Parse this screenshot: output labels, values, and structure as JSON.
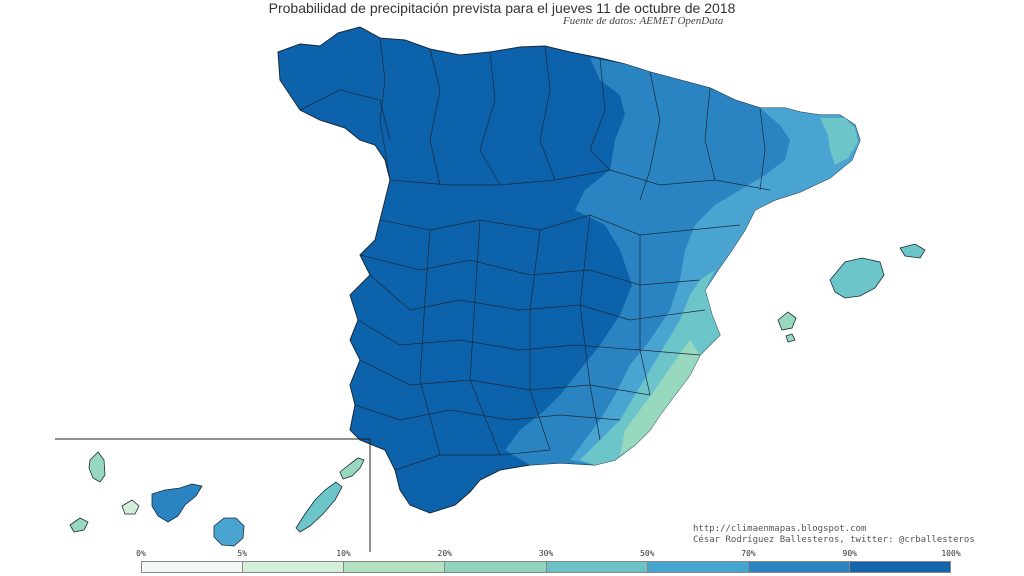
{
  "title": "Probabilidad de precipitación prevista para el jueves 11 de octubre de 2018",
  "subtitle": "Fuente de datos: AEMET OpenData",
  "credits": {
    "url": "http://climaenmapas.blogspot.com",
    "author": "César Rodríguez Ballesteros, twitter: @crballesteros"
  },
  "legend": {
    "ticks": [
      "0%",
      "5%",
      "10%",
      "20%",
      "30%",
      "50%",
      "70%",
      "90%",
      "100%"
    ],
    "colors": [
      "#f5f9f5",
      "#d4efd9",
      "#b2e2c2",
      "#8fd2bd",
      "#6bc2c4",
      "#45a5cf",
      "#2b82c0",
      "#1563aa"
    ]
  },
  "colors": {
    "very_high": "#0c62ab",
    "high": "#2b84c2",
    "medium": "#4aa4d2",
    "low": "#6cc5c9",
    "very_low": "#98d8bf",
    "border": "#1a2a3a"
  }
}
